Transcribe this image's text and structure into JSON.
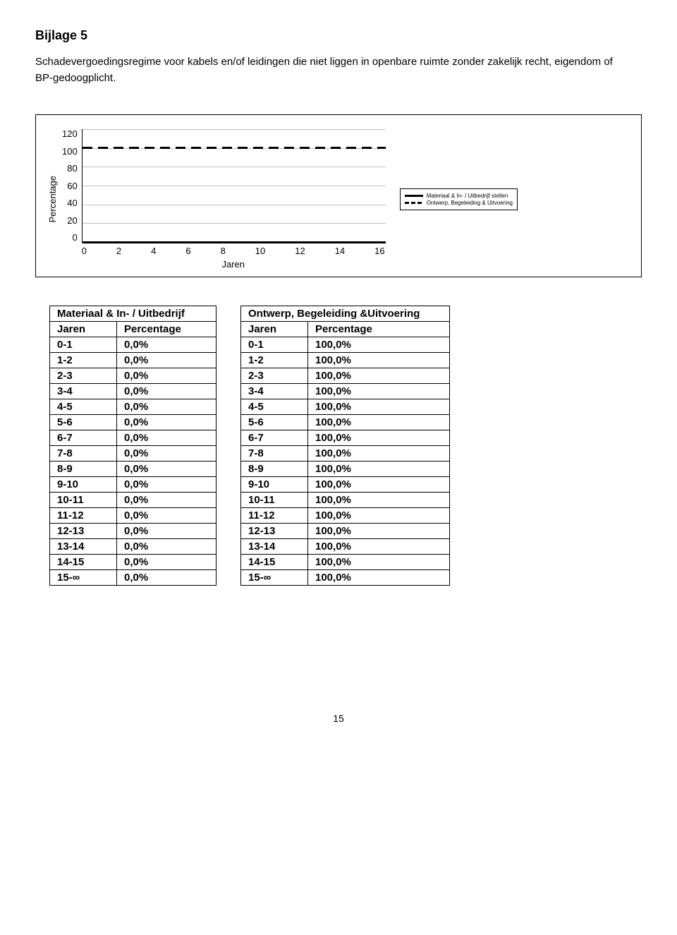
{
  "header": {
    "title": "Bijlage 5",
    "subtitle": "Schadevergoedingsregime voor kabels en/of leidingen die niet liggen in openbare ruimte zonder zakelijk recht, eigendom of BP-gedoogplicht."
  },
  "chart": {
    "type": "line",
    "y_label": "Percentage",
    "x_label": "Jaren",
    "ylim": [
      0,
      120
    ],
    "ytick_step": 20,
    "y_ticks": [
      "120",
      "100",
      "80",
      "60",
      "40",
      "20",
      "0"
    ],
    "x_ticks": [
      "0",
      "2",
      "4",
      "6",
      "8",
      "10",
      "12",
      "14",
      "16"
    ],
    "grid_color": "#bdbdbd",
    "series": [
      {
        "name": "Materiaal & In- / Uitbedrijf stellen",
        "style": "solid",
        "color": "#000000",
        "y_value": 0
      },
      {
        "name": "Ontwerp, Begeleiding & Uitvoering",
        "style": "dashed",
        "color": "#000000",
        "y_value": 100
      }
    ],
    "legend": {
      "item1": "Materiaal & In- / Uitbedrijf stellen",
      "item2": "Ontwerp, Begeleiding & Uitvoering"
    }
  },
  "table1": {
    "title": "Materiaal & In- / Uitbedrijf",
    "col1": "Jaren",
    "col2": "Percentage",
    "rows": [
      [
        "0-1",
        "0,0%"
      ],
      [
        "1-2",
        "0,0%"
      ],
      [
        "2-3",
        "0,0%"
      ],
      [
        "3-4",
        "0,0%"
      ],
      [
        "4-5",
        "0,0%"
      ],
      [
        "5-6",
        "0,0%"
      ],
      [
        "6-7",
        "0,0%"
      ],
      [
        "7-8",
        "0,0%"
      ],
      [
        "8-9",
        "0,0%"
      ],
      [
        "9-10",
        "0,0%"
      ],
      [
        "10-11",
        "0,0%"
      ],
      [
        "11-12",
        "0,0%"
      ],
      [
        "12-13",
        "0,0%"
      ],
      [
        "13-14",
        "0,0%"
      ],
      [
        "14-15",
        "0,0%"
      ],
      [
        "15-∞",
        "0,0%"
      ]
    ]
  },
  "table2": {
    "title": "Ontwerp, Begeleiding &Uitvoering",
    "col1": "Jaren",
    "col2": "Percentage",
    "rows": [
      [
        "0-1",
        "100,0%"
      ],
      [
        "1-2",
        "100,0%"
      ],
      [
        "2-3",
        "100,0%"
      ],
      [
        "3-4",
        "100,0%"
      ],
      [
        "4-5",
        "100,0%"
      ],
      [
        "5-6",
        "100,0%"
      ],
      [
        "6-7",
        "100,0%"
      ],
      [
        "7-8",
        "100,0%"
      ],
      [
        "8-9",
        "100,0%"
      ],
      [
        "9-10",
        "100,0%"
      ],
      [
        "10-11",
        "100,0%"
      ],
      [
        "11-12",
        "100,0%"
      ],
      [
        "12-13",
        "100,0%"
      ],
      [
        "13-14",
        "100,0%"
      ],
      [
        "14-15",
        "100,0%"
      ],
      [
        "15-∞",
        "100,0%"
      ]
    ]
  },
  "page_number": "15"
}
